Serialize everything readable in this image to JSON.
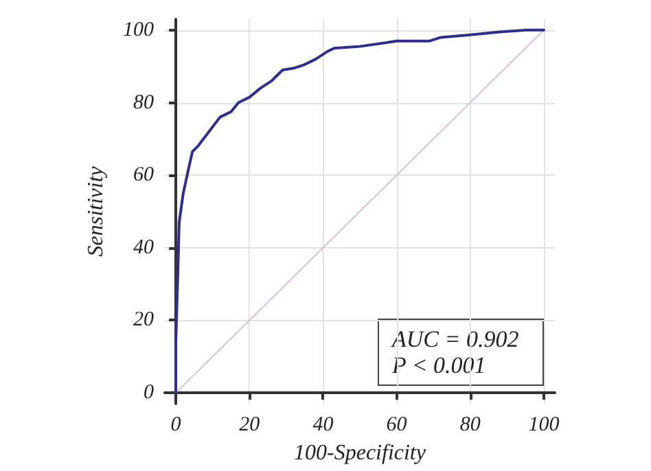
{
  "chart_data": {
    "type": "line",
    "xlabel": "100-Specificity",
    "ylabel": "Sensitivity",
    "xlim": [
      -3,
      103
    ],
    "ylim": [
      -3,
      103
    ],
    "xticks": [
      0,
      20,
      40,
      60,
      80,
      100
    ],
    "yticks": [
      0,
      20,
      40,
      60,
      80,
      100
    ],
    "grid": true,
    "marker": "none",
    "line_style": "solid",
    "series": [
      {
        "color": "#2e2e8e",
        "x": [
          0,
          0,
          0.3,
          0.6,
          0.9,
          2,
          3.5,
          4.5,
          6,
          9,
          12,
          14,
          15,
          17,
          20,
          23,
          26,
          27,
          29,
          32,
          35,
          38,
          41,
          43,
          50,
          57,
          60,
          69,
          72,
          80,
          88,
          95,
          100
        ],
        "values": [
          0,
          14,
          25,
          35,
          47,
          55,
          62,
          66.5,
          68,
          72,
          76,
          77,
          77.5,
          80,
          81.5,
          84,
          86,
          87,
          89,
          89.5,
          90.5,
          92,
          94,
          95,
          95.5,
          96.5,
          97,
          97,
          98,
          98.7,
          99.5,
          100,
          100
        ]
      },
      {
        "color": "#d9c3c8",
        "x": [
          0,
          100
        ],
        "values": [
          0,
          100
        ]
      }
    ],
    "annotations": [
      "AUC = 0.902",
      "P < 0.001"
    ]
  }
}
